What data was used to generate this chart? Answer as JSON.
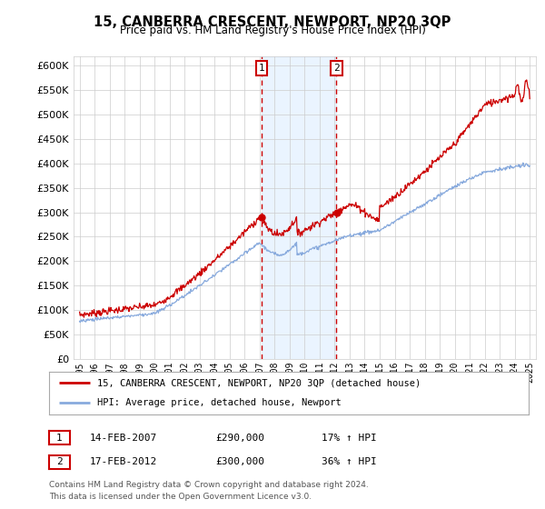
{
  "title": "15, CANBERRA CRESCENT, NEWPORT, NP20 3QP",
  "subtitle": "Price paid vs. HM Land Registry's House Price Index (HPI)",
  "ylim": [
    0,
    620000
  ],
  "yticks": [
    0,
    50000,
    100000,
    150000,
    200000,
    250000,
    300000,
    350000,
    400000,
    450000,
    500000,
    550000,
    600000
  ],
  "year_start": 1995,
  "year_end": 2025,
  "purchase1_year": 2007.12,
  "purchase1_price": 290000,
  "purchase1_label": "14-FEB-2007",
  "purchase1_pct": "17%",
  "purchase2_year": 2012.12,
  "purchase2_price": 300000,
  "purchase2_label": "17-FEB-2012",
  "purchase2_pct": "36%",
  "legend_line1": "15, CANBERRA CRESCENT, NEWPORT, NP20 3QP (detached house)",
  "legend_line2": "HPI: Average price, detached house, Newport",
  "footer_line1": "Contains HM Land Registry data © Crown copyright and database right 2024.",
  "footer_line2": "This data is licensed under the Open Government Licence v3.0.",
  "property_line_color": "#cc0000",
  "hpi_line_color": "#88aadd",
  "purchase_marker_color": "#cc0000",
  "vline_color": "#cc0000",
  "shade_color": "#ddeeff",
  "grid_color": "#cccccc",
  "background_color": "#ffffff"
}
